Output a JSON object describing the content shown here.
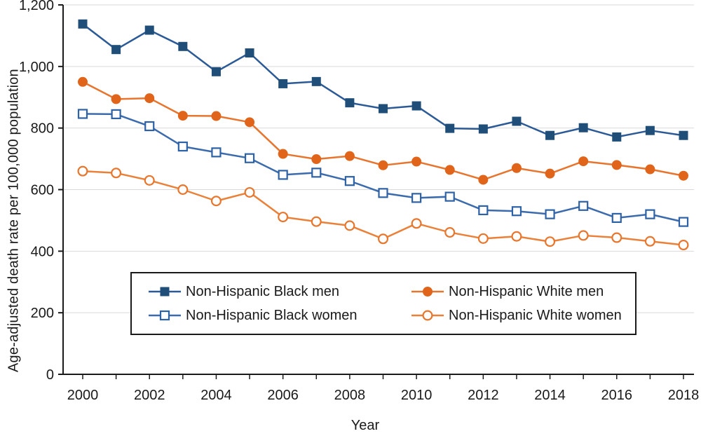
{
  "figure": {
    "background": "#FFFFFF",
    "axis_color": "#1A1A1A",
    "grid_color": "#D9D9D9",
    "text_color": "#1A1A1A"
  },
  "chart_data": {
    "type": "line",
    "title": "",
    "xlabel": "Year",
    "ylabel": "Age-adjusted death rate per 100,000 population",
    "x": [
      2000,
      2001,
      2002,
      2003,
      2004,
      2005,
      2006,
      2007,
      2008,
      2009,
      2010,
      2011,
      2012,
      2013,
      2014,
      2015,
      2016,
      2017,
      2018
    ],
    "x_tick_labels": [
      "2000",
      "2002",
      "2004",
      "2006",
      "2008",
      "2010",
      "2012",
      "2014",
      "2016",
      "2018"
    ],
    "y_ticks": [
      0,
      200,
      400,
      600,
      800,
      1000,
      1200
    ],
    "y_tick_labels": [
      "0",
      "200",
      "400",
      "600",
      "800",
      "1,000",
      "1,200"
    ],
    "ylim": [
      0,
      1200
    ],
    "grid": "horizontal",
    "legend_position": "inside-bottom",
    "series": [
      {
        "name": "Non-Hispanic Black men",
        "marker": "square-filled",
        "line_color": "#2B5A97",
        "marker_color": "#1F4E79",
        "values": [
          1138,
          1055,
          1118,
          1065,
          983,
          1044,
          944,
          951,
          882,
          863,
          872,
          799,
          797,
          822,
          776,
          801,
          771,
          792,
          776
        ]
      },
      {
        "name": "Non-Hispanic White men",
        "marker": "circle-filled",
        "line_color": "#E8752E",
        "marker_color": "#E06419",
        "values": [
          950,
          894,
          897,
          840,
          839,
          819,
          716,
          699,
          709,
          679,
          691,
          664,
          632,
          670,
          652,
          692,
          680,
          666,
          645
        ]
      },
      {
        "name": "Non-Hispanic Black women",
        "marker": "square-open",
        "line_color": "#3B6BAD",
        "marker_color": "#2E62A6",
        "values": [
          846,
          845,
          806,
          740,
          721,
          702,
          648,
          655,
          628,
          589,
          573,
          577,
          533,
          530,
          520,
          547,
          508,
          520,
          495
        ]
      },
      {
        "name": "Non-Hispanic White women",
        "marker": "circle-open",
        "line_color": "#EB8038",
        "marker_color": "#E8762C",
        "values": [
          660,
          654,
          630,
          600,
          563,
          591,
          511,
          496,
          483,
          440,
          490,
          461,
          441,
          448,
          431,
          451,
          444,
          432,
          420
        ]
      }
    ]
  }
}
